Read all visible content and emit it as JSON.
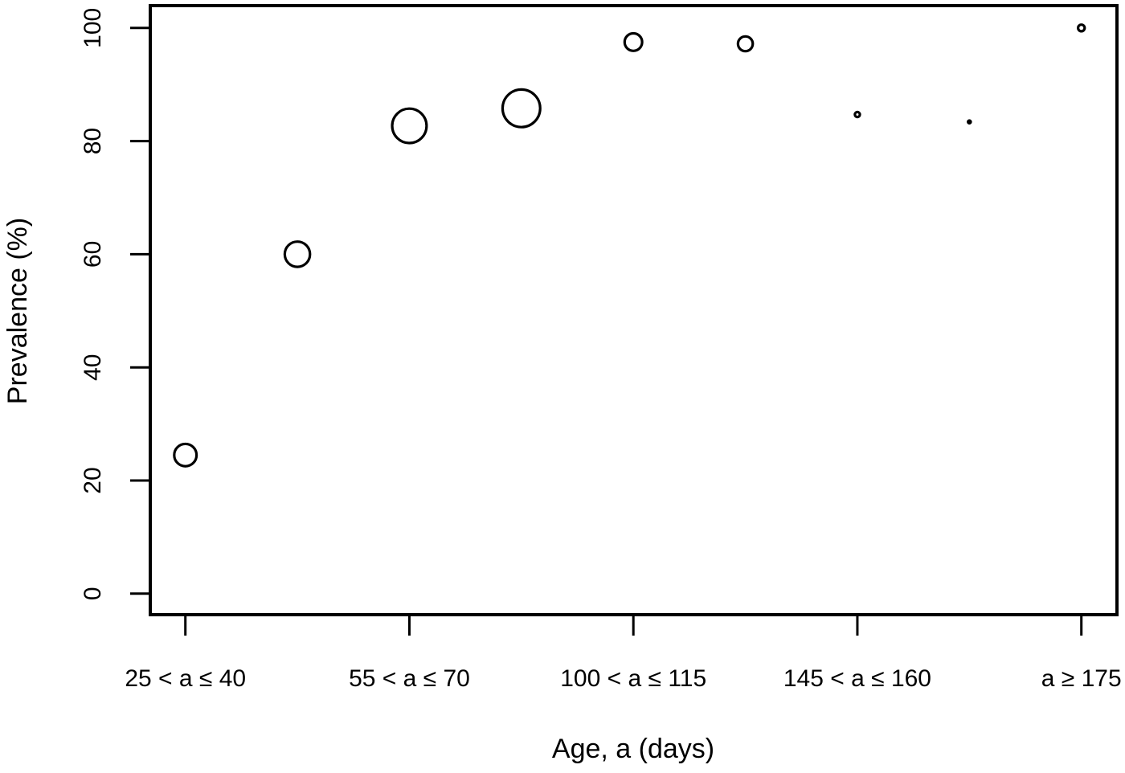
{
  "figure": {
    "background_color": "#ffffff",
    "foreground_color": "#000000"
  },
  "chart_data": {
    "type": "scatter",
    "subtype": "bubble-plot-open-circles",
    "title": "",
    "xlabel": "Age, a (days)",
    "ylabel": "Prevalence (%)",
    "ylim": [
      0,
      100
    ],
    "y_ticks": [
      0,
      20,
      40,
      60,
      80,
      100
    ],
    "grid": "off",
    "legend": "none",
    "x_axis": {
      "num_slots": 9,
      "tick_slots": [
        0,
        2,
        4,
        6,
        8
      ],
      "tick_labels": [
        "25 < a ≤ 40",
        "55 < a ≤ 70",
        "100 < a ≤ 115",
        "145 < a ≤ 160",
        "a ≥ 175"
      ]
    },
    "points": [
      {
        "slot": 0,
        "prevalence_pct": 24.5,
        "outer_radius_px": 15.5,
        "filled": false
      },
      {
        "slot": 1,
        "prevalence_pct": 60.0,
        "outer_radius_px": 17.3,
        "filled": false
      },
      {
        "slot": 2,
        "prevalence_pct": 82.7,
        "outer_radius_px": 23.0,
        "filled": false
      },
      {
        "slot": 3,
        "prevalence_pct": 85.8,
        "outer_radius_px": 25.0,
        "filled": false
      },
      {
        "slot": 4,
        "prevalence_pct": 97.5,
        "outer_radius_px": 12.5,
        "filled": false
      },
      {
        "slot": 5,
        "prevalence_pct": 97.2,
        "outer_radius_px": 10.8,
        "filled": false
      },
      {
        "slot": 6,
        "prevalence_pct": 84.7,
        "outer_radius_px": 4.7,
        "filled": false
      },
      {
        "slot": 7,
        "prevalence_pct": 83.4,
        "outer_radius_px": 3.3,
        "filled": true
      },
      {
        "slot": 8,
        "prevalence_pct": 100.0,
        "outer_radius_px": 5.7,
        "filled": false
      }
    ]
  }
}
